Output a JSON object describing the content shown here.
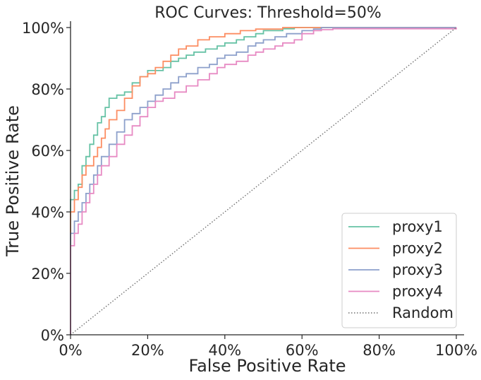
{
  "chart_data": {
    "type": "line",
    "title": "ROC Curves: Threshold=50%",
    "xlabel": "False Positive Rate",
    "ylabel": "True Positive Rate",
    "xlim": [
      0,
      100
    ],
    "ylim": [
      0,
      100
    ],
    "x_ticks": [
      "0%",
      "20%",
      "40%",
      "60%",
      "80%",
      "100%"
    ],
    "y_ticks": [
      "0%",
      "20%",
      "40%",
      "60%",
      "80%",
      "100%"
    ],
    "grid": false,
    "legend_position": "bottom-right",
    "series": [
      {
        "name": "proxy1",
        "color": "#66c2a5",
        "dash": "solid",
        "points": [
          [
            0,
            0
          ],
          [
            0,
            44
          ],
          [
            1,
            47
          ],
          [
            2,
            49
          ],
          [
            3,
            55
          ],
          [
            4,
            58
          ],
          [
            5,
            62
          ],
          [
            6,
            65
          ],
          [
            7,
            69
          ],
          [
            8,
            71
          ],
          [
            9,
            74
          ],
          [
            10,
            77
          ],
          [
            12,
            78
          ],
          [
            14,
            79
          ],
          [
            16,
            82
          ],
          [
            18,
            84
          ],
          [
            20,
            86
          ],
          [
            24,
            87
          ],
          [
            26,
            89
          ],
          [
            28,
            90
          ],
          [
            30,
            91
          ],
          [
            32,
            92
          ],
          [
            35,
            93
          ],
          [
            38,
            94
          ],
          [
            40,
            95
          ],
          [
            43,
            96
          ],
          [
            45,
            97
          ],
          [
            48,
            98
          ],
          [
            50,
            99
          ],
          [
            55,
            99.6
          ],
          [
            58,
            100
          ],
          [
            100,
            100
          ]
        ]
      },
      {
        "name": "proxy2",
        "color": "#fc8d62",
        "dash": "solid",
        "points": [
          [
            0,
            0
          ],
          [
            0,
            40
          ],
          [
            1,
            44
          ],
          [
            2,
            48
          ],
          [
            3,
            52
          ],
          [
            4,
            55
          ],
          [
            6,
            58
          ],
          [
            7,
            61
          ],
          [
            8,
            64
          ],
          [
            9,
            67
          ],
          [
            10,
            70
          ],
          [
            12,
            73
          ],
          [
            14,
            77
          ],
          [
            16,
            81
          ],
          [
            18,
            84
          ],
          [
            20,
            85
          ],
          [
            22,
            87
          ],
          [
            24,
            89
          ],
          [
            26,
            91
          ],
          [
            28,
            93
          ],
          [
            30,
            94
          ],
          [
            33,
            96
          ],
          [
            36,
            97
          ],
          [
            40,
            98
          ],
          [
            44,
            99
          ],
          [
            48,
            99.5
          ],
          [
            55,
            100
          ],
          [
            100,
            100
          ]
        ]
      },
      {
        "name": "proxy3",
        "color": "#8da0cb",
        "dash": "solid",
        "points": [
          [
            0,
            0
          ],
          [
            0,
            33
          ],
          [
            1,
            37
          ],
          [
            2,
            40
          ],
          [
            3,
            43
          ],
          [
            4,
            46
          ],
          [
            5,
            49
          ],
          [
            6,
            52
          ],
          [
            7,
            55
          ],
          [
            8,
            58
          ],
          [
            10,
            62
          ],
          [
            12,
            66
          ],
          [
            14,
            70
          ],
          [
            16,
            72
          ],
          [
            18,
            74
          ],
          [
            20,
            76
          ],
          [
            22,
            78
          ],
          [
            24,
            80
          ],
          [
            26,
            82
          ],
          [
            28,
            84
          ],
          [
            30,
            85
          ],
          [
            33,
            87
          ],
          [
            36,
            88
          ],
          [
            38,
            90
          ],
          [
            40,
            91
          ],
          [
            43,
            92
          ],
          [
            46,
            94
          ],
          [
            48,
            95
          ],
          [
            50,
            96
          ],
          [
            53,
            97
          ],
          [
            56,
            98
          ],
          [
            60,
            99
          ],
          [
            63,
            99.5
          ],
          [
            65,
            100
          ],
          [
            100,
            100
          ]
        ]
      },
      {
        "name": "proxy4",
        "color": "#e78ac3",
        "dash": "solid",
        "points": [
          [
            0,
            0
          ],
          [
            0,
            29
          ],
          [
            1,
            33
          ],
          [
            2,
            36
          ],
          [
            3,
            40
          ],
          [
            4,
            43
          ],
          [
            5,
            46
          ],
          [
            6,
            49
          ],
          [
            7,
            52
          ],
          [
            8,
            55
          ],
          [
            10,
            58
          ],
          [
            12,
            62
          ],
          [
            14,
            65
          ],
          [
            16,
            68
          ],
          [
            18,
            71
          ],
          [
            20,
            74
          ],
          [
            22,
            76
          ],
          [
            24,
            77
          ],
          [
            27,
            79
          ],
          [
            30,
            81
          ],
          [
            33,
            83
          ],
          [
            36,
            85
          ],
          [
            38,
            87
          ],
          [
            40,
            88
          ],
          [
            43,
            89
          ],
          [
            46,
            91
          ],
          [
            48,
            92
          ],
          [
            50,
            93
          ],
          [
            53,
            94
          ],
          [
            55,
            95
          ],
          [
            58,
            96
          ],
          [
            60,
            98
          ],
          [
            63,
            99
          ],
          [
            65,
            99.3
          ],
          [
            68,
            99.6
          ],
          [
            100,
            100
          ]
        ]
      },
      {
        "name": "Random",
        "color": "#707070",
        "dash": "dotted",
        "points": [
          [
            0,
            0
          ],
          [
            100,
            100
          ]
        ]
      }
    ]
  }
}
